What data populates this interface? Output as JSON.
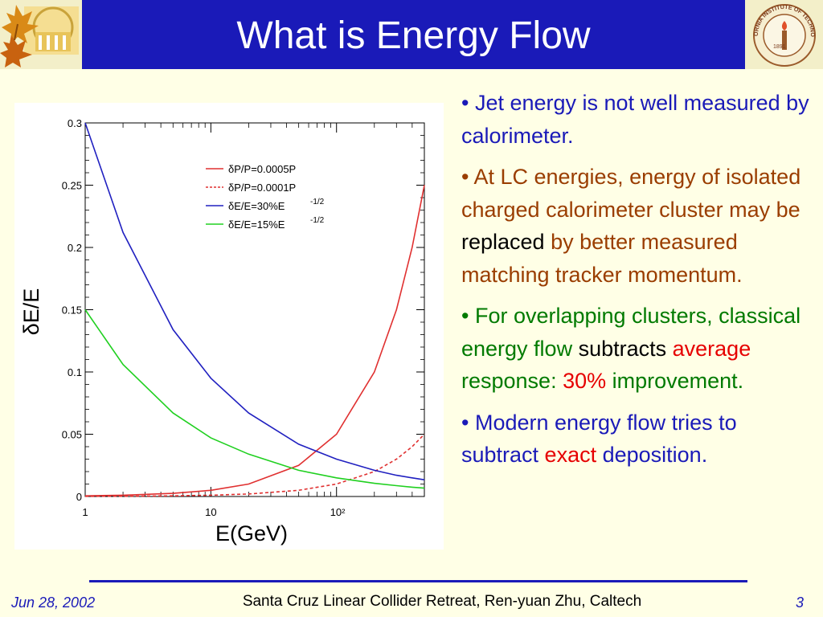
{
  "header": {
    "title": "What is Energy Flow"
  },
  "logos": {
    "right_logo_text": "CALIFORNIA INSTITUTE OF TECHNOLOGY",
    "right_logo_year": "1891"
  },
  "bullets": [
    {
      "segments": [
        {
          "text": "• Jet energy is not well measured by calorimeter.",
          "color": "#1a1ab8"
        }
      ]
    },
    {
      "segments": [
        {
          "text": "• At LC energies, energy of isolated charged calorimeter cluster may be ",
          "color": "#9a3d00"
        },
        {
          "text": "replaced",
          "color": "#000000"
        },
        {
          "text": " by better measured matching tracker momentum.",
          "color": "#9a3d00"
        }
      ]
    },
    {
      "segments": [
        {
          "text": "• For overlapping clusters, classical energy flow ",
          "color": "#007a00"
        },
        {
          "text": "subtracts",
          "color": "#000000"
        },
        {
          "text": " ",
          "color": "#007a00"
        },
        {
          "text": "average",
          "color": "#e60000"
        },
        {
          "text": " response: ",
          "color": "#007a00"
        },
        {
          "text": "30%",
          "color": "#e60000"
        },
        {
          "text": " improvement.",
          "color": "#007a00"
        }
      ]
    },
    {
      "segments": [
        {
          "text": "• Modern energy flow tries to subtract ",
          "color": "#1a1ab8"
        },
        {
          "text": "exact",
          "color": "#e60000"
        },
        {
          "text": " deposition.",
          "color": "#1a1ab8"
        }
      ]
    }
  ],
  "footer": {
    "date": "Jun 28, 2002",
    "center": "Santa Cruz Linear Collider  Retreat, Ren-yuan Zhu, Caltech",
    "page": "3"
  },
  "chart_data": {
    "type": "line",
    "xscale": "log",
    "xlim": [
      1,
      500
    ],
    "ylim": [
      0,
      0.3
    ],
    "xlabel": "E(GeV)",
    "ylabel": "δE/E",
    "xticks": [
      "1",
      "10",
      "10²"
    ],
    "yticks": [
      "0",
      "0.05",
      "0.1",
      "0.15",
      "0.2",
      "0.25",
      "0.3"
    ],
    "legend_position": "top-right",
    "series": [
      {
        "name": "δP/P=0.0005P",
        "color": "#e03030",
        "dash": false,
        "x": [
          1,
          2,
          5,
          10,
          20,
          50,
          100,
          200,
          300,
          400,
          500
        ],
        "y": [
          0.0005,
          0.001,
          0.0025,
          0.005,
          0.01,
          0.025,
          0.05,
          0.1,
          0.15,
          0.2,
          0.25
        ]
      },
      {
        "name": "δP/P=0.0001P",
        "color": "#e03030",
        "dash": true,
        "x": [
          1,
          2,
          5,
          10,
          20,
          50,
          100,
          200,
          300,
          400,
          500
        ],
        "y": [
          0.0001,
          0.0002,
          0.0005,
          0.001,
          0.002,
          0.005,
          0.01,
          0.02,
          0.03,
          0.04,
          0.05
        ]
      },
      {
        "name": "δE/E=30%E",
        "name_sup": "-1/2",
        "color": "#2020c0",
        "dash": false,
        "x": [
          1,
          2,
          5,
          10,
          20,
          50,
          100,
          200,
          300,
          400,
          500
        ],
        "y": [
          0.3,
          0.212,
          0.134,
          0.095,
          0.067,
          0.042,
          0.03,
          0.021,
          0.017,
          0.015,
          0.0134
        ]
      },
      {
        "name": "δE/E=15%E",
        "name_sup": "-1/2",
        "color": "#20d020",
        "dash": false,
        "x": [
          1,
          2,
          5,
          10,
          20,
          50,
          100,
          200,
          300,
          400,
          500
        ],
        "y": [
          0.15,
          0.106,
          0.067,
          0.047,
          0.034,
          0.021,
          0.015,
          0.0106,
          0.0087,
          0.0075,
          0.0067
        ]
      }
    ]
  }
}
